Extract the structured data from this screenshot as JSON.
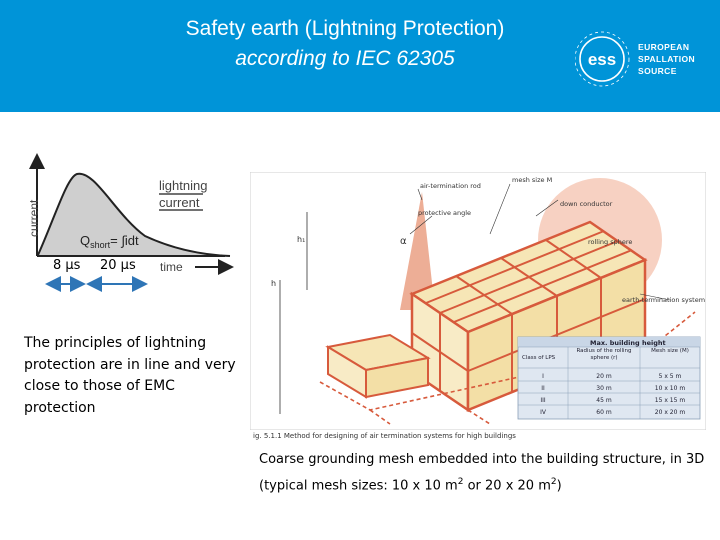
{
  "header": {
    "title_line1": "Safety earth (Lightning Protection)",
    "title_line2": "according to IEC 62305",
    "bg_color": "#0094d8"
  },
  "logo": {
    "mark": "ess",
    "line1": "EUROPEAN",
    "line2": "SPALLATION",
    "line3": "SOURCE"
  },
  "waveform": {
    "y_axis_label": "current",
    "x_axis_label": "time",
    "curve_label_line1": "lightning",
    "curve_label_line2": "current",
    "formula_q": "Q",
    "formula_sub": "short",
    "formula_rest": "= ∫idt",
    "time1": "8 µs",
    "time2": "20 µs"
  },
  "principles_text": "The principles of lightning protection are in line and very close to those of EMC protection",
  "figure": {
    "labels": {
      "air_termination_rod": "air-termination rod",
      "mesh_size": "mesh size M",
      "protective_angle": "protective angle",
      "down_conductor": "down conductor",
      "rolling_sphere": "rolling sphere",
      "earth_termination": "earth-termination system",
      "h1": "h₁",
      "h": "h",
      "alpha": "α"
    },
    "table": {
      "title": "Max. building height",
      "headers": [
        "Class of LPS",
        "Radius of the rolling sphere (r)",
        "Mesh size (M)"
      ],
      "rows": [
        [
          "I",
          "20 m",
          "5 x 5 m"
        ],
        [
          "II",
          "30 m",
          "10 x 10 m"
        ],
        [
          "III",
          "45 m",
          "15 x 15 m"
        ],
        [
          "IV",
          "60 m",
          "20 x 20 m"
        ]
      ]
    },
    "caption": "ig. 5.1.1  Method for designing of air termination systems for high buildings"
  },
  "caption": {
    "part1": "Coarse grounding mesh embedded into the building structure, in 3D (typical mesh sizes: 10 x 10 m",
    "sup1": "2",
    "part2": " or 20 x 20 m",
    "sup2": "2",
    "part3": ")"
  }
}
